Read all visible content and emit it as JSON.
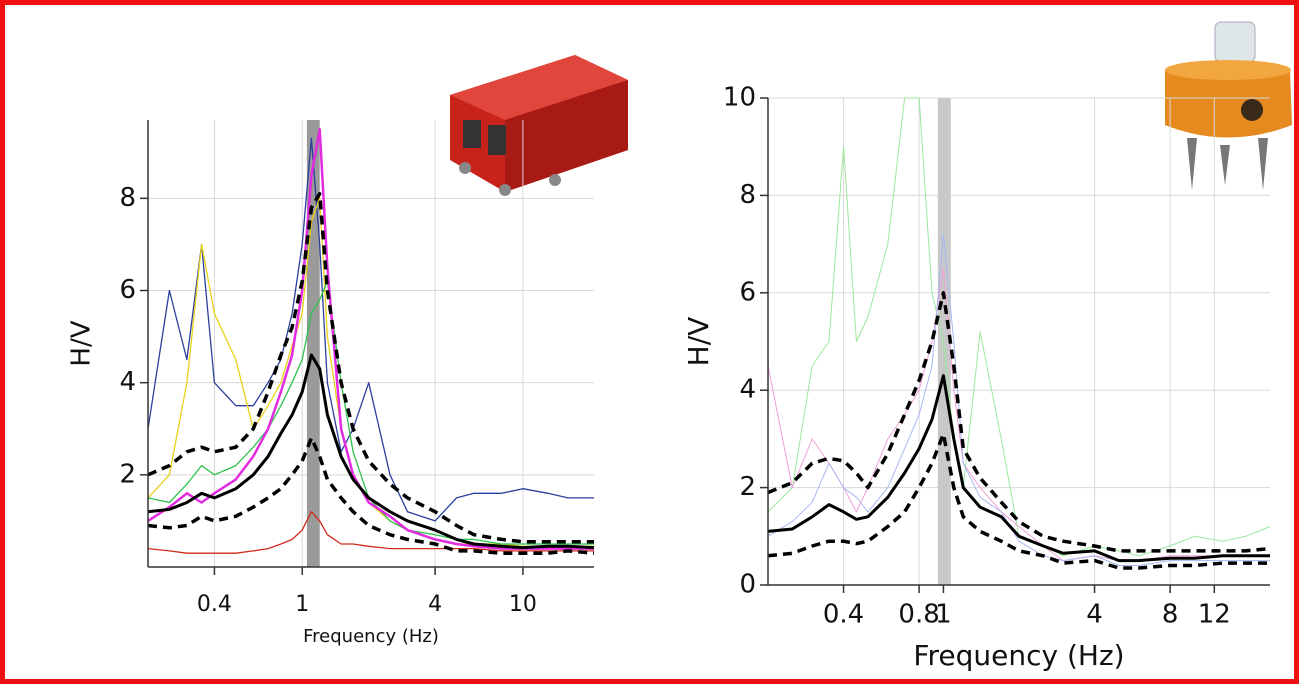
{
  "chart_data": [
    {
      "type": "line",
      "xscale": "log",
      "xlabel": "Frequency (Hz)",
      "ylabel": "H/V",
      "xlim": [
        0.2,
        21
      ],
      "ylim": [
        0,
        9.7
      ],
      "xticks": [
        0.4,
        1,
        4,
        10
      ],
      "yticks": [
        2,
        4,
        6,
        8
      ],
      "grid": true,
      "band": [
        1.05,
        1.2
      ],
      "band_color": "#9a9a9a",
      "x": [
        0.2,
        0.25,
        0.3,
        0.35,
        0.4,
        0.5,
        0.6,
        0.7,
        0.8,
        0.9,
        1.0,
        1.1,
        1.2,
        1.3,
        1.5,
        1.7,
        2,
        2.5,
        3,
        4,
        5,
        6,
        8,
        10,
        13,
        16,
        21
      ],
      "series": [
        {
          "color": "#2a3f9e",
          "width": 1.3,
          "values": [
            3.0,
            6.0,
            4.5,
            7.0,
            4.0,
            3.5,
            3.5,
            4.0,
            4.5,
            5.5,
            7.0,
            9.3,
            7.0,
            4.0,
            2.5,
            3.0,
            4.0,
            2.0,
            1.2,
            1.0,
            1.5,
            1.6,
            1.6,
            1.7,
            1.6,
            1.5,
            1.5
          ]
        },
        {
          "color": "#e8d21a",
          "width": 1.3,
          "values": [
            1.5,
            2.0,
            4.0,
            7.0,
            5.5,
            4.5,
            3.0,
            3.5,
            4.0,
            4.8,
            5.5,
            7.5,
            8.0,
            5.0,
            3.0,
            2.0,
            1.4,
            1.0,
            0.8,
            0.6,
            0.5,
            0.5,
            0.5,
            0.45,
            0.45,
            0.45,
            0.45
          ]
        },
        {
          "color": "#2ec24a",
          "width": 1.3,
          "values": [
            1.5,
            1.4,
            1.8,
            2.2,
            2.0,
            2.2,
            2.6,
            3.0,
            3.5,
            4.0,
            4.5,
            5.5,
            5.8,
            6.2,
            4.0,
            2.5,
            1.5,
            1.0,
            0.8,
            0.7,
            0.6,
            0.6,
            0.5,
            0.5,
            0.5,
            0.5,
            0.5
          ]
        },
        {
          "color": "#e22be0",
          "width": 2.5,
          "values": [
            1.0,
            1.3,
            1.6,
            1.4,
            1.6,
            1.9,
            2.4,
            3.0,
            3.8,
            4.6,
            6.0,
            8.5,
            9.5,
            6.5,
            3.0,
            2.0,
            1.4,
            1.1,
            0.8,
            0.6,
            0.5,
            0.45,
            0.4,
            0.4,
            0.4,
            0.4,
            0.4
          ]
        },
        {
          "color": "#d02a1a",
          "width": 1.3,
          "values": [
            0.4,
            0.35,
            0.3,
            0.3,
            0.3,
            0.3,
            0.35,
            0.4,
            0.5,
            0.6,
            0.8,
            1.2,
            1.0,
            0.7,
            0.5,
            0.5,
            0.45,
            0.4,
            0.4,
            0.4,
            0.4,
            0.4,
            0.35,
            0.35,
            0.35,
            0.35,
            0.35
          ]
        },
        {
          "color": "#000000",
          "width": 3,
          "values": [
            1.2,
            1.25,
            1.4,
            1.6,
            1.5,
            1.7,
            2.0,
            2.4,
            2.9,
            3.3,
            3.8,
            4.6,
            4.3,
            3.3,
            2.4,
            1.9,
            1.5,
            1.2,
            1.0,
            0.8,
            0.6,
            0.5,
            0.45,
            0.42,
            0.45,
            0.45,
            0.42
          ]
        },
        {
          "color": "#000000",
          "width": 3.5,
          "dash": true,
          "values": [
            2.0,
            2.2,
            2.5,
            2.6,
            2.5,
            2.6,
            3.0,
            3.8,
            4.6,
            5.2,
            6.2,
            7.8,
            8.1,
            6.0,
            4.0,
            3.0,
            2.3,
            1.8,
            1.5,
            1.2,
            0.9,
            0.7,
            0.6,
            0.55,
            0.55,
            0.55,
            0.55
          ]
        },
        {
          "color": "#000000",
          "width": 3.5,
          "dash": true,
          "values": [
            0.9,
            0.85,
            0.9,
            1.1,
            1.0,
            1.1,
            1.3,
            1.5,
            1.7,
            2.0,
            2.3,
            2.8,
            2.4,
            1.9,
            1.5,
            1.2,
            0.9,
            0.7,
            0.6,
            0.5,
            0.35,
            0.35,
            0.3,
            0.3,
            0.3,
            0.35,
            0.3
          ]
        }
      ]
    },
    {
      "type": "line",
      "xscale": "log",
      "xlabel": "Frequency (Hz)",
      "ylabel": "H/V",
      "xlim": [
        0.2,
        20
      ],
      "ylim": [
        0,
        10
      ],
      "xticks": [
        0.4,
        0.8,
        1,
        4,
        8,
        12
      ],
      "yticks": [
        0,
        2,
        4,
        6,
        8,
        10
      ],
      "grid": true,
      "band": [
        0.95,
        1.07
      ],
      "band_color": "#c8c8c8",
      "x": [
        0.2,
        0.25,
        0.3,
        0.35,
        0.4,
        0.45,
        0.5,
        0.6,
        0.7,
        0.8,
        0.9,
        1.0,
        1.1,
        1.2,
        1.4,
        1.7,
        2,
        2.5,
        3,
        4,
        5,
        6,
        8,
        10,
        13,
        16,
        20
      ],
      "series": [
        {
          "color": "#9be89b",
          "width": 1,
          "values": [
            1.5,
            2.0,
            4.5,
            5.0,
            9.0,
            5.0,
            5.5,
            7.0,
            10.0,
            10.0,
            6.0,
            5.0,
            3.0,
            2.0,
            5.2,
            3.0,
            1.0,
            0.8,
            0.6,
            0.8,
            0.7,
            0.6,
            0.8,
            1.0,
            0.9,
            1.0,
            1.2
          ]
        },
        {
          "color": "#f0a0d8",
          "width": 1,
          "values": [
            4.5,
            2.0,
            3.0,
            2.5,
            2.0,
            1.5,
            2.0,
            3.0,
            3.5,
            4.0,
            5.0,
            6.5,
            4.0,
            2.5,
            2.0,
            1.5,
            1.2,
            0.8,
            0.5,
            0.6,
            0.5,
            0.5,
            0.6,
            0.6,
            0.6,
            0.6,
            0.6
          ]
        },
        {
          "color": "#a8b8f0",
          "width": 1,
          "values": [
            1.0,
            1.3,
            1.7,
            2.5,
            2.0,
            1.8,
            1.5,
            2.0,
            2.8,
            3.5,
            4.5,
            7.2,
            5.0,
            2.5,
            1.8,
            1.5,
            0.9,
            0.6,
            0.5,
            0.6,
            0.4,
            0.4,
            0.5,
            0.5,
            0.5,
            0.5,
            0.5
          ]
        },
        {
          "color": "#000000",
          "width": 3,
          "values": [
            1.1,
            1.15,
            1.4,
            1.65,
            1.5,
            1.35,
            1.4,
            1.8,
            2.3,
            2.8,
            3.4,
            4.3,
            3.0,
            2.0,
            1.6,
            1.4,
            1.0,
            0.8,
            0.65,
            0.7,
            0.5,
            0.5,
            0.55,
            0.55,
            0.6,
            0.6,
            0.6
          ]
        },
        {
          "color": "#000000",
          "width": 3.5,
          "dash": true,
          "values": [
            1.9,
            2.1,
            2.5,
            2.6,
            2.55,
            2.3,
            2.0,
            2.7,
            3.5,
            4.2,
            5.0,
            6.0,
            4.5,
            2.8,
            2.2,
            1.7,
            1.3,
            1.0,
            0.9,
            0.8,
            0.7,
            0.7,
            0.7,
            0.7,
            0.7,
            0.7,
            0.75
          ]
        },
        {
          "color": "#000000",
          "width": 3.5,
          "dash": true,
          "values": [
            0.6,
            0.65,
            0.8,
            0.9,
            0.9,
            0.85,
            0.9,
            1.2,
            1.5,
            2.0,
            2.5,
            3.1,
            2.0,
            1.4,
            1.1,
            0.9,
            0.7,
            0.6,
            0.45,
            0.5,
            0.35,
            0.35,
            0.4,
            0.4,
            0.45,
            0.45,
            0.45
          ]
        }
      ]
    }
  ]
}
